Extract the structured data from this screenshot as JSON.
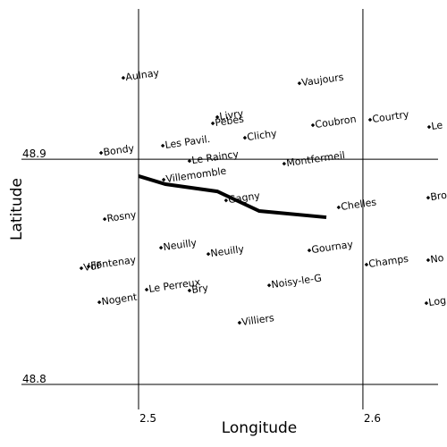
{
  "chart_data": {
    "type": "scatter",
    "xlabel": "Longitude",
    "ylabel": "Latitude",
    "xlim": [
      2.4478,
      2.6335
    ],
    "ylim": [
      48.7889,
      48.9667
    ],
    "xticks": [
      2.5,
      2.6
    ],
    "yticks": [
      48.8,
      48.9
    ],
    "color": "#000000",
    "x": [
      2.4932,
      2.5717,
      2.5351,
      2.5331,
      2.5777,
      2.6032,
      2.6295,
      2.4833,
      2.5108,
      2.5474,
      2.5227,
      2.5649,
      2.5112,
      2.539,
      2.5892,
      2.6291,
      2.4849,
      2.51,
      2.5311,
      2.5761,
      2.4745,
      2.4777,
      2.6016,
      2.6291,
      2.4825,
      2.5036,
      2.5227,
      2.5582,
      2.6283,
      2.545
    ],
    "y": [
      48.9361,
      48.9337,
      48.9187,
      48.9159,
      48.9151,
      48.9175,
      48.9143,
      48.9028,
      48.906,
      48.9095,
      48.8992,
      48.898,
      48.8909,
      48.8817,
      48.8786,
      48.8829,
      48.8734,
      48.8607,
      48.8579,
      48.8595,
      48.8516,
      48.8524,
      48.8532,
      48.8552,
      48.8365,
      48.8421,
      48.8417,
      48.844,
      48.8361,
      48.8274
    ],
    "labels": [
      "Aulnay",
      "Vaujours",
      "Livry",
      "Pebes",
      "Coubron",
      "Courtry",
      "Le",
      "Bondy",
      "Les Pavil.",
      "Clichy",
      "Le Raincy",
      "Montfermeil",
      "Villemomble",
      "Gagny",
      "Chelles",
      "Bro",
      "Rosny",
      "Neuilly",
      "Neuilly",
      "Gournay",
      "VdF",
      "Fontenay",
      "Champs",
      "No",
      "Nogent",
      "Le Perreux",
      "Bry",
      "Noisy-le-G",
      "Log",
      "Villiers"
    ],
    "line_x": [
      2.5,
      2.512,
      2.5351,
      2.5538,
      2.5837
    ],
    "line_y": [
      48.8925,
      48.8889,
      48.8857,
      48.877,
      48.8742
    ]
  }
}
